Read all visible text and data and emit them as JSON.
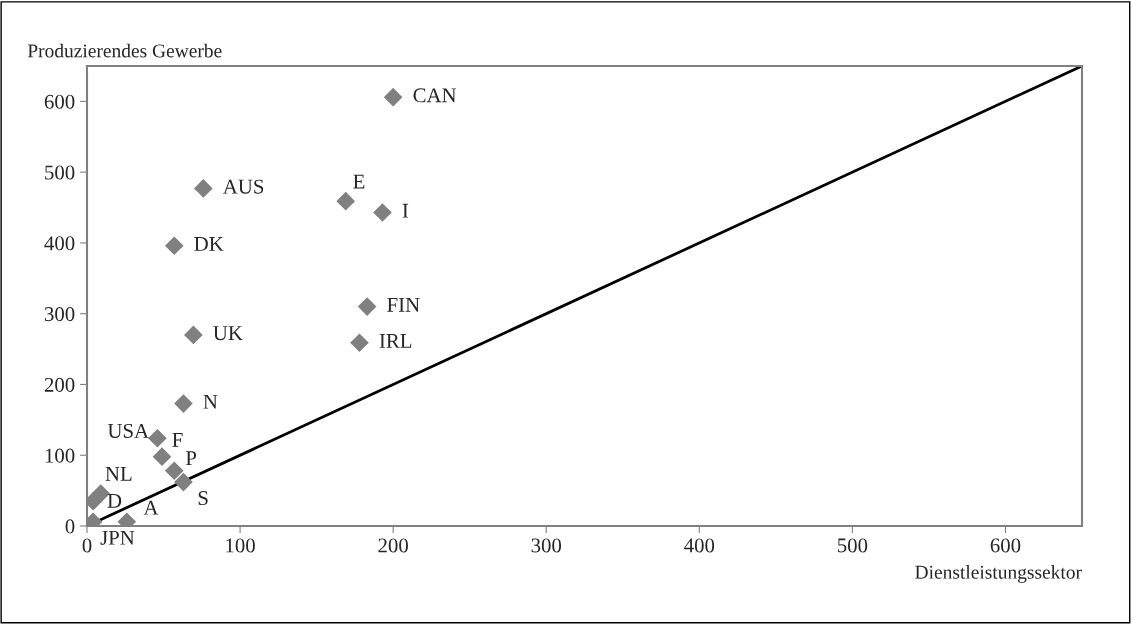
{
  "chart_data": {
    "type": "scatter",
    "xlabel": "Dienstleistungssektor",
    "ylabel": "Produzierendes Gewerbe",
    "xlim": [
      0,
      650
    ],
    "ylim": [
      0,
      650
    ],
    "xticks": [
      0,
      100,
      200,
      300,
      400,
      500,
      600
    ],
    "yticks": [
      0,
      100,
      200,
      300,
      400,
      500,
      600
    ],
    "grid": false,
    "legend": false,
    "series": [
      {
        "color": "#808080",
        "marker": "diamond",
        "x": [
          200,
          76,
          169,
          193,
          57,
          183,
          69.5,
          178,
          63,
          46,
          49,
          57,
          63,
          9,
          4,
          4,
          26
        ],
        "values": [
          606,
          477,
          459,
          443,
          396,
          310,
          270,
          259,
          173,
          124,
          98,
          78,
          62,
          46,
          35,
          6,
          6
        ]
      },
      {
        "type": "line",
        "color": "#000000",
        "x": [
          0,
          650
        ],
        "values": [
          0,
          650
        ]
      }
    ],
    "annotations": [
      {
        "text": "CAN",
        "x": 200,
        "y": 606
      },
      {
        "text": "AUS",
        "x": 76,
        "y": 477
      },
      {
        "text": "E",
        "x": 169,
        "y": 459
      },
      {
        "text": "I",
        "x": 193,
        "y": 443
      },
      {
        "text": "DK",
        "x": 57,
        "y": 396
      },
      {
        "text": "FIN",
        "x": 183,
        "y": 310
      },
      {
        "text": "UK",
        "x": 69.5,
        "y": 270
      },
      {
        "text": "IRL",
        "x": 178,
        "y": 259
      },
      {
        "text": "N",
        "x": 63,
        "y": 173
      },
      {
        "text": "USA",
        "x": 46,
        "y": 124
      },
      {
        "text": "F",
        "x": 49,
        "y": 98
      },
      {
        "text": "P",
        "x": 57,
        "y": 78
      },
      {
        "text": "S",
        "x": 63,
        "y": 62
      },
      {
        "text": "NL",
        "x": 9,
        "y": 46
      },
      {
        "text": "D",
        "x": 4,
        "y": 35
      },
      {
        "text": "JPN",
        "x": 4,
        "y": 6
      },
      {
        "text": "A",
        "x": 26,
        "y": 6
      }
    ]
  }
}
